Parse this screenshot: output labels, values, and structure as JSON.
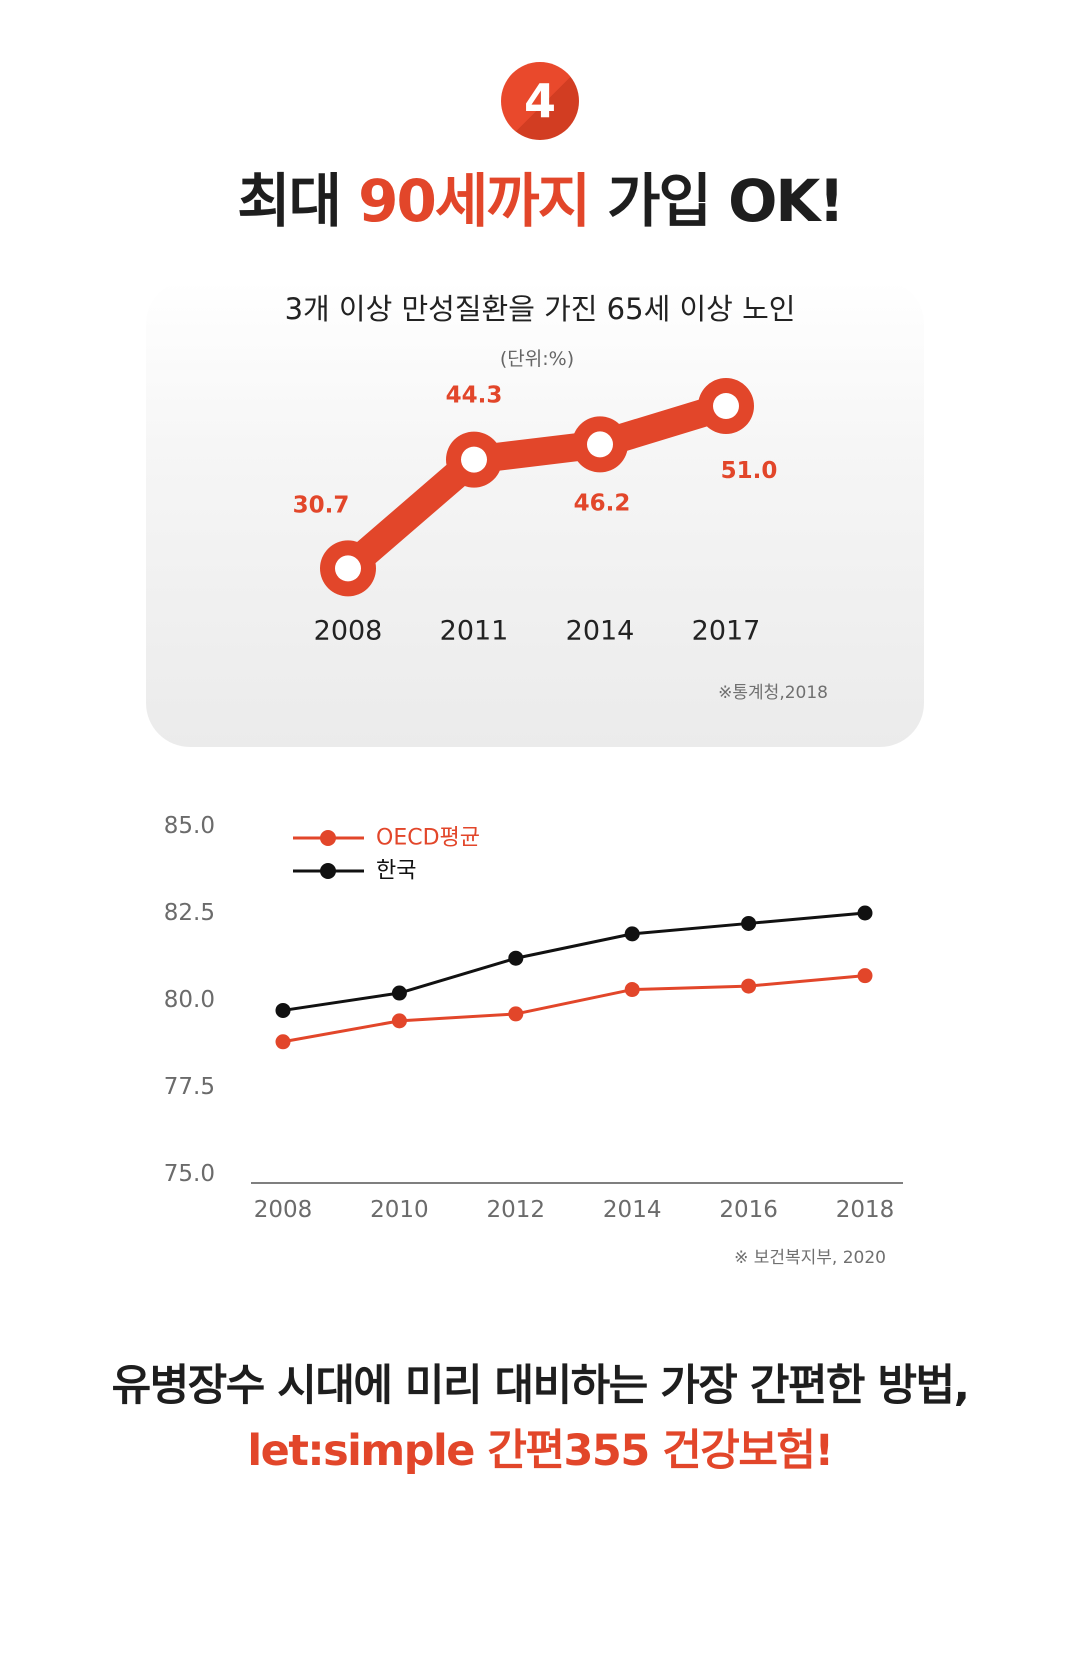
{
  "colors": {
    "accent": "#e2462a",
    "text": "#222222",
    "muted": "#707070"
  },
  "badge": {
    "number": "4"
  },
  "headline": {
    "before": "최대",
    "highlight": "90세까지",
    "after": "가입 OK!"
  },
  "chart_data": [
    {
      "type": "line",
      "title": "3개 이상 만성질환을 가진 65세 이상 노인",
      "unit_note": "(단위:%)",
      "categories": [
        "2008",
        "2011",
        "2014",
        "2017"
      ],
      "values": [
        30.7,
        44.3,
        46.2,
        51.0
      ],
      "source": "※통계청,2018"
    },
    {
      "type": "line",
      "x": [
        2008,
        2010,
        2012,
        2014,
        2016,
        2018
      ],
      "ylim": [
        75.0,
        85.0
      ],
      "y_ticks": [
        85.0,
        82.5,
        80.0,
        77.5,
        75.0
      ],
      "grid": false,
      "legend": "top-left",
      "series": [
        {
          "name": "OECD평균",
          "color": "#e2462a",
          "values": [
            78.8,
            79.4,
            79.6,
            80.3,
            80.4,
            80.7
          ]
        },
        {
          "name": "한국",
          "color": "#111111",
          "values": [
            79.7,
            80.2,
            81.2,
            81.9,
            82.2,
            82.5
          ]
        }
      ],
      "source": "※ 보건복지부, 2020"
    }
  ],
  "closing": {
    "line1": "유병장수 시대에 미리 대비하는 가장 간편한 방법,",
    "line2": "let:simple 간편355 건강보험!"
  }
}
